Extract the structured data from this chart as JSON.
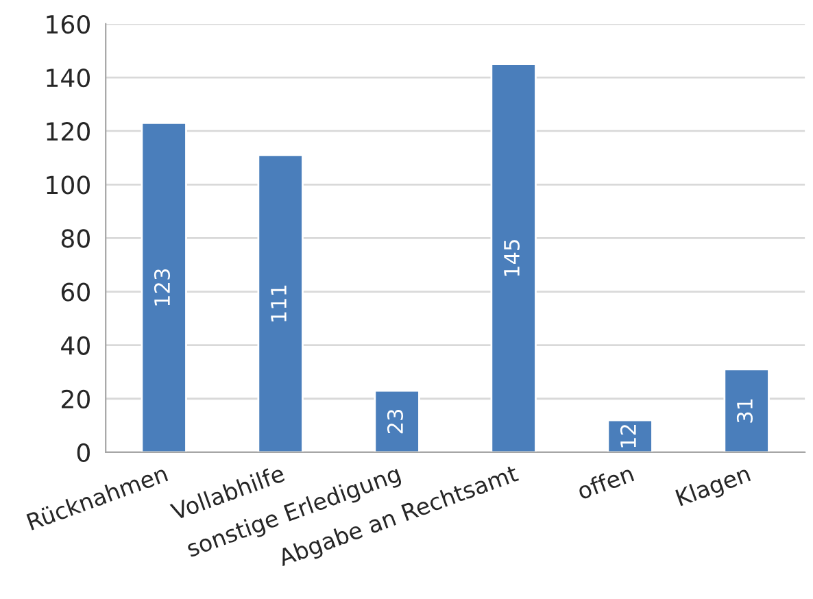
{
  "chart_data": {
    "type": "bar",
    "categories": [
      "Rücknahmen",
      "Vollabhilfe",
      "sonstige Erledigung",
      "Abgabe an Rechtsamt",
      "offen",
      "Klagen"
    ],
    "values": [
      123,
      111,
      23,
      145,
      12,
      31
    ],
    "color": "#4a7ebb",
    "ylim": [
      0,
      160
    ],
    "yticks": [
      0,
      20,
      40,
      60,
      80,
      100,
      120,
      140,
      160
    ],
    "grid": "y",
    "data_labels": true
  }
}
